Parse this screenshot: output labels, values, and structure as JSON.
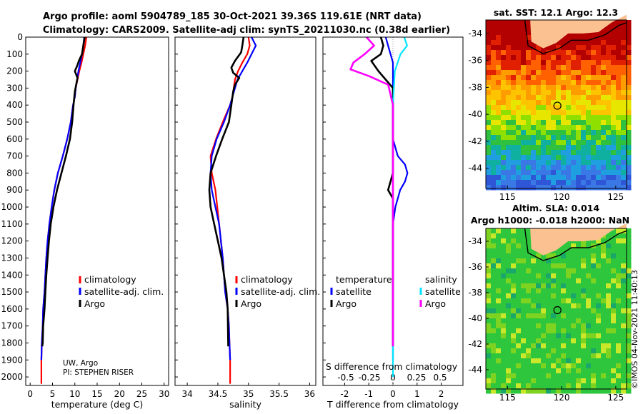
{
  "header": {
    "line1": "Argo profile: aoml 5904789_185 30-Oct-2021 39.36S 119.61E (NRT data)",
    "line2": "Climatology: CARS2009. Satellite-adj clim: synTS_20211030.nc (0.38d earlier)"
  },
  "credit": {
    "line1": "UW, Argo",
    "line2": "PI: STEPHEN RISER"
  },
  "copyright": "©IMOS 04-Nov-2021 11:40:13",
  "colors": {
    "climatology": "#ff0000",
    "satellite": "#0000ff",
    "argo": "#000000",
    "sat_diff_s": "#00e5ff",
    "argo_diff_s": "#ff00ff"
  },
  "chart_data": [
    {
      "type": "line",
      "id": "temperature",
      "xlabel": "temperature (deg C)",
      "ylabel": "",
      "xlim": [
        -1,
        31
      ],
      "ylim": [
        2050,
        0
      ],
      "xticks": [
        "0",
        "5",
        "10",
        "15",
        "20",
        "25",
        "30"
      ],
      "yticks": [
        "0",
        "100",
        "200",
        "300",
        "400",
        "500",
        "600",
        "700",
        "800",
        "900",
        "1000",
        "1100",
        "1200",
        "1300",
        "1400",
        "1500",
        "1600",
        "1700",
        "1800",
        "1900",
        "2000"
      ],
      "legend": [
        "climatology",
        "satellite-adj. clim.",
        "Argo"
      ],
      "series": [
        {
          "name": "climatology",
          "x": [
            12.6,
            12.3,
            11.9,
            11.5,
            11.0,
            10.6,
            10.2,
            10.0,
            9.6,
            9.1,
            8.3,
            7.3,
            6.2,
            5.4,
            4.8,
            4.3,
            3.9,
            3.6,
            3.4,
            3.2,
            2.9,
            2.8,
            2.6,
            2.5,
            2.5
          ],
          "depth": [
            0,
            50,
            100,
            150,
            200,
            250,
            300,
            350,
            400,
            500,
            600,
            700,
            800,
            900,
            1000,
            1100,
            1200,
            1300,
            1400,
            1500,
            1600,
            1700,
            1800,
            1900,
            2040
          ]
        },
        {
          "name": "satellite-adj. clim.",
          "x": [
            12.1,
            11.9,
            11.6,
            11.2,
            10.8,
            10.5,
            10.2,
            10.0,
            9.6,
            9.1,
            8.3,
            7.3,
            6.2,
            5.4,
            4.8,
            4.3,
            3.9,
            3.6,
            3.4,
            3.2,
            2.9,
            2.8,
            2.6,
            2.5
          ],
          "depth": [
            0,
            50,
            100,
            150,
            200,
            250,
            300,
            350,
            400,
            500,
            600,
            700,
            800,
            900,
            1000,
            1100,
            1200,
            1300,
            1400,
            1500,
            1600,
            1700,
            1800,
            1900
          ]
        },
        {
          "name": "Argo",
          "x": [
            12.2,
            11.9,
            11.6,
            10.9,
            10.5,
            10.0,
            10.6,
            10.3,
            10.0,
            9.7,
            9.4,
            8.9,
            8.0,
            7.0,
            6.0,
            5.2,
            4.6,
            4.2,
            3.9,
            3.6,
            3.4,
            3.2,
            2.9,
            2.8,
            2.7
          ],
          "depth": [
            0,
            50,
            100,
            140,
            170,
            200,
            240,
            280,
            320,
            400,
            500,
            600,
            700,
            800,
            900,
            1000,
            1100,
            1200,
            1300,
            1400,
            1500,
            1600,
            1700,
            1800,
            1820
          ]
        }
      ]
    },
    {
      "type": "line",
      "id": "salinity",
      "xlabel": "salinity",
      "xlim": [
        33.8,
        36.1
      ],
      "ylim": [
        2050,
        0
      ],
      "xticks": [
        "34",
        "34.5",
        "35",
        "35.5",
        "36"
      ],
      "legend": [
        "climatology",
        "satellite-adj. clim.",
        "Argo"
      ],
      "series": [
        {
          "name": "climatology",
          "x": [
            35.0,
            35.02,
            34.98,
            34.9,
            34.83,
            34.78,
            34.76,
            34.74,
            34.7,
            34.58,
            34.47,
            34.38,
            34.4,
            34.46,
            34.52,
            34.58,
            34.62,
            34.66,
            34.68,
            34.69,
            34.7,
            34.7
          ],
          "depth": [
            0,
            50,
            100,
            150,
            200,
            250,
            300,
            350,
            400,
            500,
            600,
            700,
            800,
            900,
            1100,
            1300,
            1500,
            1600,
            1700,
            1800,
            1900,
            2040
          ]
        },
        {
          "name": "satellite-adj. clim.",
          "x": [
            35.05,
            35.12,
            35.05,
            34.98,
            34.9,
            34.82,
            34.78,
            34.74,
            34.7,
            34.6,
            34.48,
            34.4,
            34.38,
            34.4,
            34.46,
            34.52,
            34.58,
            34.62,
            34.66,
            34.68,
            34.69,
            34.7
          ],
          "depth": [
            0,
            50,
            100,
            150,
            200,
            250,
            300,
            350,
            400,
            500,
            600,
            700,
            800,
            900,
            1000,
            1100,
            1300,
            1500,
            1600,
            1700,
            1800,
            1900
          ]
        },
        {
          "name": "Argo",
          "x": [
            34.92,
            34.9,
            34.88,
            34.78,
            34.72,
            34.75,
            34.85,
            34.78,
            34.75,
            34.72,
            34.68,
            34.57,
            34.47,
            34.38,
            34.36,
            34.38,
            34.44,
            34.5,
            34.56,
            34.6,
            34.64,
            34.66,
            34.67
          ],
          "depth": [
            0,
            50,
            90,
            140,
            180,
            210,
            240,
            280,
            320,
            400,
            500,
            600,
            700,
            800,
            900,
            1000,
            1100,
            1200,
            1300,
            1400,
            1500,
            1600,
            1820
          ]
        }
      ]
    },
    {
      "type": "line",
      "id": "differences",
      "xlabel": "T difference from climatology",
      "xlabel2": "S difference from climatology",
      "xlim": [
        -2.9,
        2.9
      ],
      "ylim": [
        2050,
        0
      ],
      "xticks": [
        "-2",
        "-1",
        "0",
        "1",
        "2"
      ],
      "xticks_s": [
        "-0.5",
        "-0.25",
        "0",
        "0.25",
        "0.5"
      ],
      "legend_t_title": "temperature",
      "legend_s_title": "salinity",
      "legend_t": [
        "satellite",
        "Argo"
      ],
      "legend_s": [
        "satellite",
        "Argo"
      ],
      "series": [
        {
          "name": "temperature satellite",
          "x": [
            -0.3,
            -0.2,
            -0.1,
            0,
            0,
            0,
            0,
            0,
            0.2,
            0.5,
            0.6,
            0.5,
            0.3,
            0.1,
            0,
            0
          ],
          "depth": [
            0,
            50,
            100,
            150,
            200,
            300,
            400,
            600,
            700,
            750,
            800,
            850,
            900,
            1000,
            1100,
            1900
          ]
        },
        {
          "name": "temperature Argo",
          "x": [
            -0.5,
            -0.4,
            -0.5,
            -0.9,
            -0.6,
            0,
            0,
            0,
            0,
            0,
            -0.2,
            0,
            0,
            0
          ],
          "depth": [
            0,
            50,
            100,
            140,
            200,
            300,
            400,
            500,
            600,
            800,
            900,
            950,
            1000,
            1820
          ]
        },
        {
          "name": "salinity satellite",
          "x": [
            0.12,
            0.15,
            0.08,
            0.05,
            0.02,
            0.01,
            0,
            0,
            0,
            0,
            0
          ],
          "depth": [
            0,
            50,
            100,
            150,
            200,
            300,
            400,
            600,
            900,
            1300,
            2000
          ]
        },
        {
          "name": "salinity Argo",
          "x": [
            -0.28,
            -0.2,
            -0.3,
            -0.42,
            -0.45,
            -0.25,
            -0.05,
            0,
            0,
            0,
            0
          ],
          "depth": [
            0,
            50,
            100,
            150,
            190,
            230,
            280,
            400,
            600,
            900,
            1820
          ]
        }
      ]
    },
    {
      "type": "heatmap",
      "id": "sst-map",
      "title": "sat. SST: 12.1 Argo: 12.3",
      "xticks": [
        "115",
        "120",
        "125"
      ],
      "yticks": [
        "-34",
        "-36",
        "-38",
        "-40",
        "-42",
        "-44"
      ],
      "xlim": [
        113,
        126
      ],
      "ylim": [
        -45.5,
        -33
      ]
    },
    {
      "type": "heatmap",
      "id": "sla-map",
      "title1": "Altim. SLA: 0.014",
      "title2": "Argo h1000: -0.018 h2000: NaN",
      "xticks": [
        "115",
        "120",
        "125"
      ],
      "yticks": [
        "-34",
        "-36",
        "-38",
        "-40",
        "-42",
        "-44"
      ],
      "xlim": [
        113,
        126
      ],
      "ylim": [
        -45.5,
        -33
      ]
    }
  ]
}
